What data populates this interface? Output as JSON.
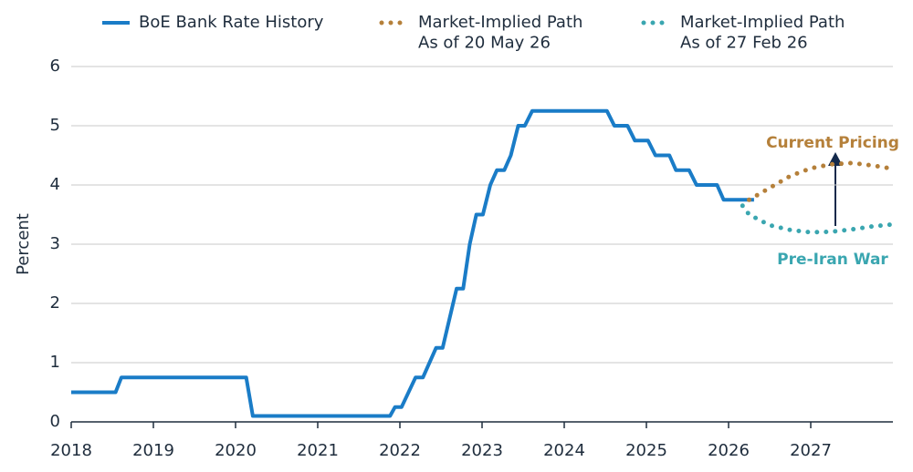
{
  "chart_data": {
    "type": "line",
    "y_label": "Percent",
    "xlim": [
      2018,
      2028
    ],
    "xticks": [
      2018,
      2019,
      2020,
      2021,
      2022,
      2023,
      2024,
      2025,
      2026,
      2027
    ],
    "ylim": [
      0,
      6
    ],
    "yticks": [
      0,
      1,
      2,
      3,
      4,
      5,
      6
    ],
    "grid": true,
    "series": [
      {
        "name": "BoE Bank Rate History",
        "color": "#1a7cc7",
        "style": "solid",
        "x": [
          2018,
          2018.54,
          2018.61,
          2020.13,
          2020.21,
          2021.88,
          2021.94,
          2022.02,
          2022.19,
          2022.28,
          2022.44,
          2022.52,
          2022.69,
          2022.77,
          2022.85,
          2022.93,
          2023.01,
          2023.1,
          2023.18,
          2023.27,
          2023.35,
          2023.44,
          2023.52,
          2023.61,
          2024.52,
          2024.61,
          2024.77,
          2024.86,
          2025.02,
          2025.11,
          2025.28,
          2025.36,
          2025.52,
          2025.61,
          2025.86,
          2025.94,
          2026.31
        ],
        "values": [
          0.5,
          0.5,
          0.75,
          0.75,
          0.1,
          0.1,
          0.25,
          0.25,
          0.75,
          0.75,
          1.25,
          1.25,
          2.25,
          2.25,
          3.0,
          3.5,
          3.5,
          4.0,
          4.25,
          4.25,
          4.5,
          5.0,
          5.0,
          5.25,
          5.25,
          5.0,
          5.0,
          4.75,
          4.75,
          4.5,
          4.5,
          4.25,
          4.25,
          4.0,
          4.0,
          3.75,
          3.75
        ]
      },
      {
        "name": "Market-Implied Path\nAs of 20 May 26",
        "color": "#b5803a",
        "style": "dotted",
        "x": [
          2026.25,
          2026.5,
          2026.75,
          2027.0,
          2027.25,
          2027.5,
          2027.75,
          2027.97
        ],
        "values": [
          3.75,
          3.95,
          4.15,
          4.28,
          4.35,
          4.37,
          4.33,
          4.28
        ]
      },
      {
        "name": "Market-Implied Path\nAs of 27 Feb 26",
        "color": "#3aa6b0",
        "style": "dotted",
        "x": [
          2026.17,
          2026.25,
          2026.5,
          2026.75,
          2027.0,
          2027.25,
          2027.5,
          2027.75,
          2027.97
        ],
        "values": [
          3.65,
          3.5,
          3.32,
          3.24,
          3.2,
          3.21,
          3.25,
          3.3,
          3.33
        ]
      }
    ],
    "annotations": [
      "Current Pricing",
      "Pre-Iran War"
    ]
  }
}
